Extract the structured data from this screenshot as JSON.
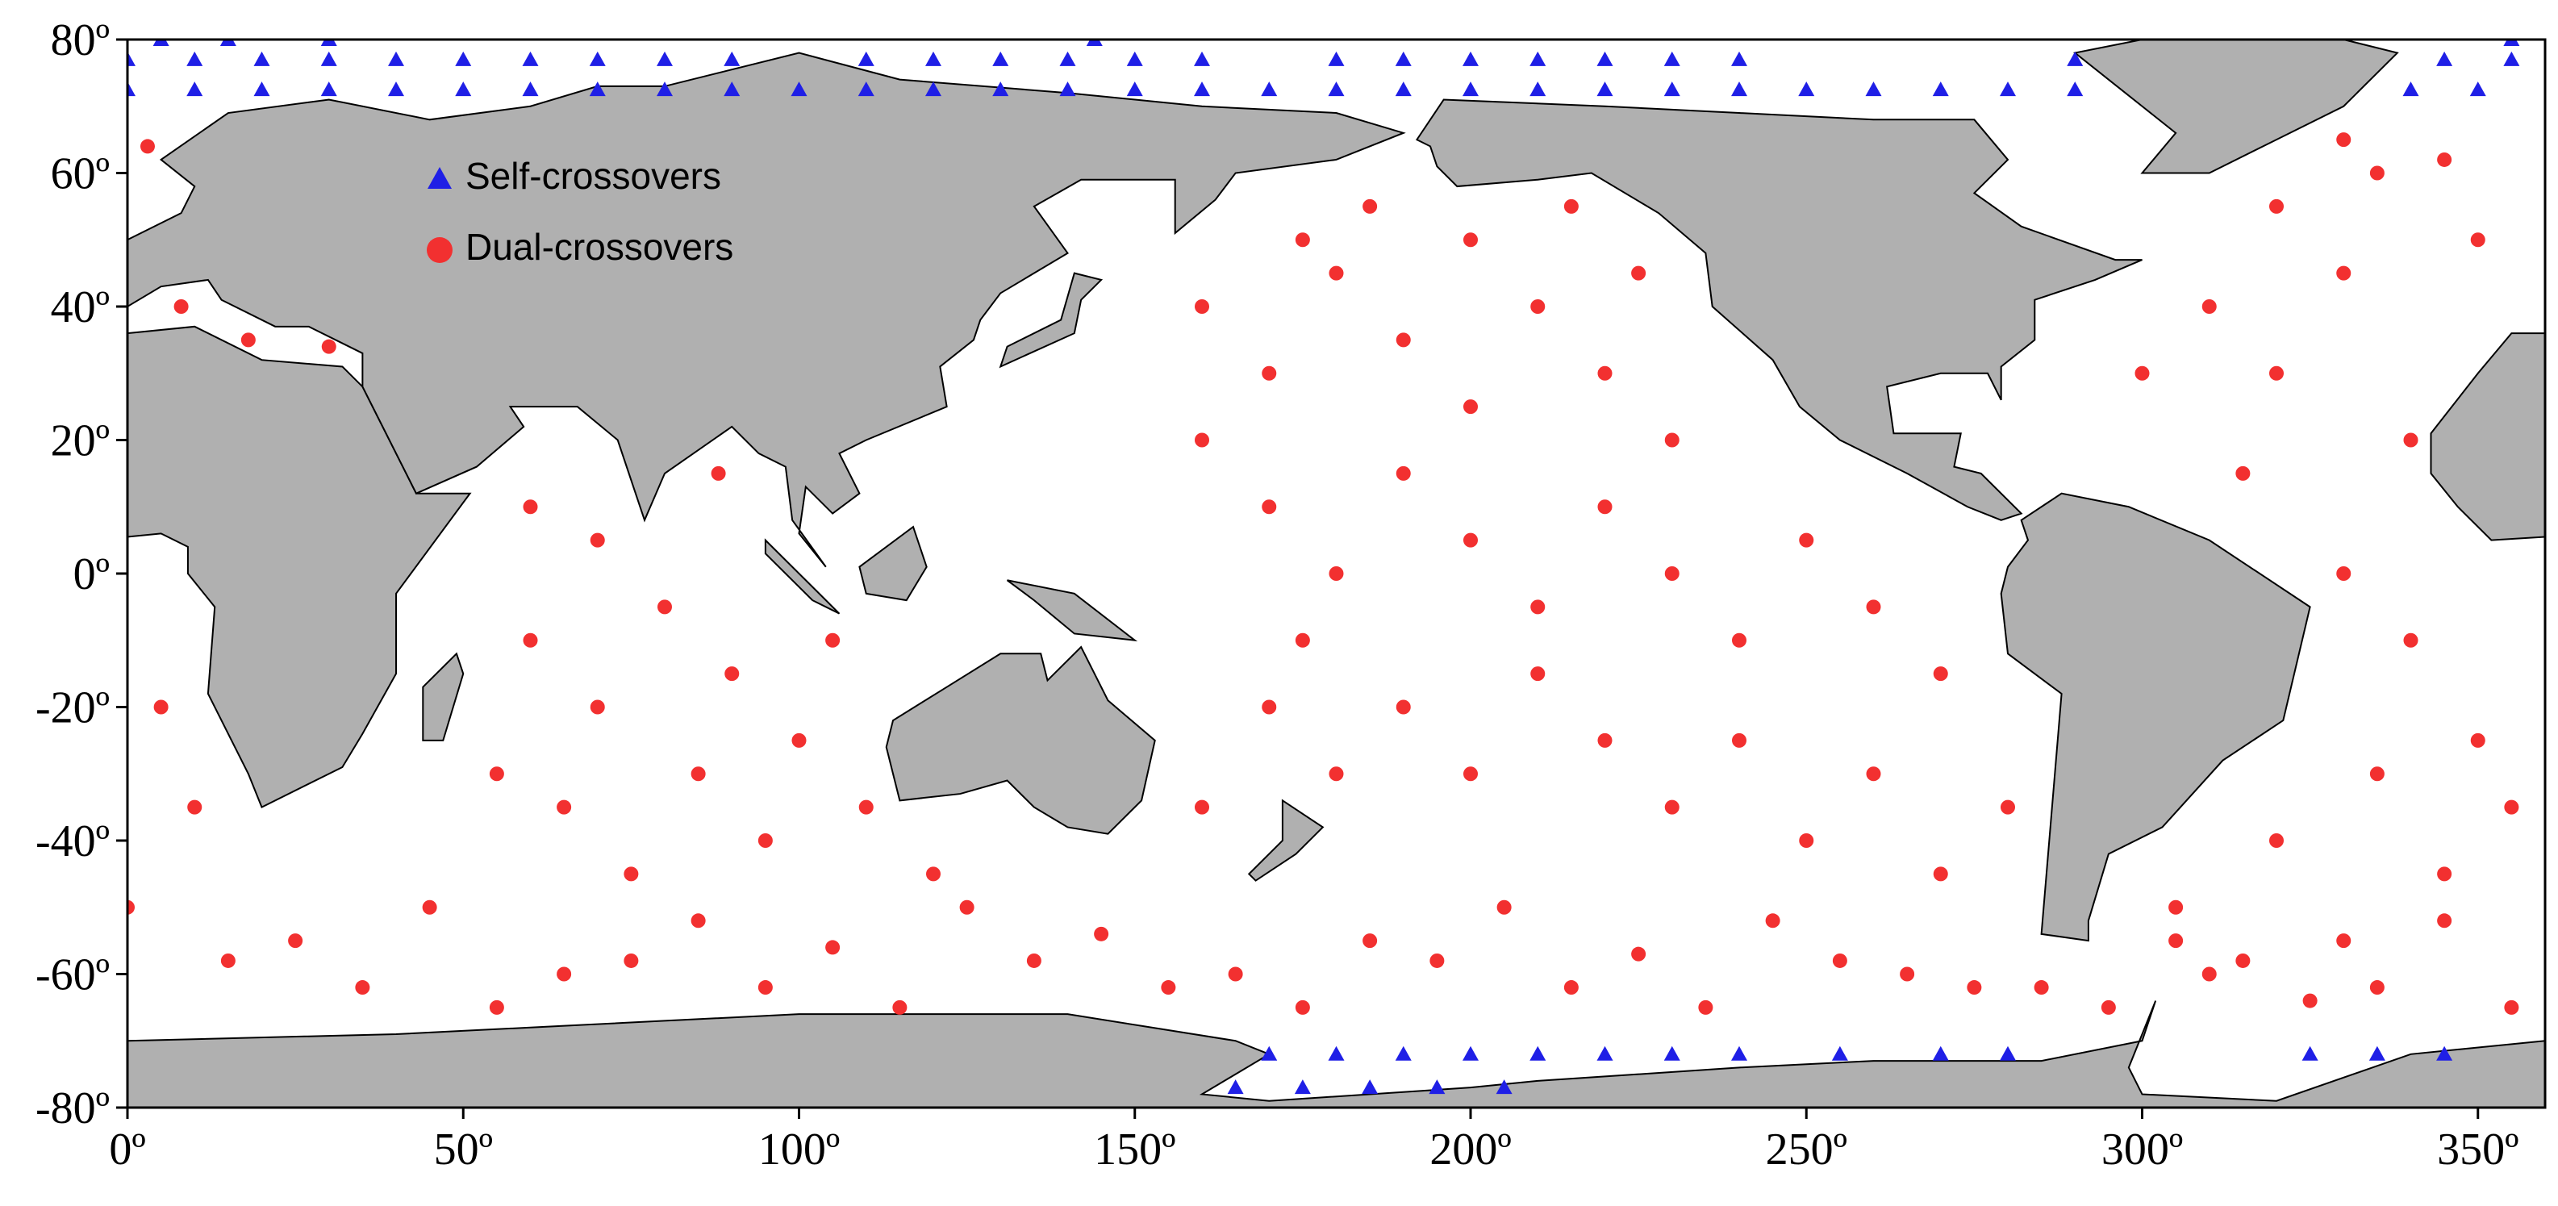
{
  "chart_data": {
    "type": "scatter",
    "xlim": [
      0,
      360
    ],
    "ylim": [
      -80,
      80
    ],
    "xticks": [
      {
        "value": 0,
        "label": "0º"
      },
      {
        "value": 50,
        "label": "50º"
      },
      {
        "value": 100,
        "label": "100º"
      },
      {
        "value": 150,
        "label": "150º"
      },
      {
        "value": 200,
        "label": "200º"
      },
      {
        "value": 250,
        "label": "250º"
      },
      {
        "value": 300,
        "label": "300º"
      },
      {
        "value": 350,
        "label": "350º"
      }
    ],
    "yticks": [
      {
        "value": -80,
        "label": "-80º"
      },
      {
        "value": -60,
        "label": "-60º"
      },
      {
        "value": -40,
        "label": "-40º"
      },
      {
        "value": -20,
        "label": "-20º"
      },
      {
        "value": 0,
        "label": "0º"
      },
      {
        "value": 20,
        "label": "20º"
      },
      {
        "value": 40,
        "label": "40º"
      },
      {
        "value": 60,
        "label": "60º"
      },
      {
        "value": 80,
        "label": "80º"
      }
    ],
    "legend": "upper left",
    "series": [
      {
        "name": "Self-crossovers",
        "color": "#1f1fe6",
        "marker": "triangle",
        "x": [
          0,
          10,
          20,
          30,
          40,
          50,
          60,
          70,
          80,
          90,
          100,
          110,
          120,
          130,
          140,
          150,
          160,
          170,
          180,
          190,
          200,
          210,
          220,
          230,
          240,
          250,
          260,
          270,
          280,
          290,
          340,
          350,
          0,
          10,
          20,
          30,
          40,
          50,
          60,
          70,
          80,
          90,
          110,
          120,
          130,
          140,
          150,
          160,
          180,
          190,
          200,
          210,
          220,
          230,
          240,
          290,
          345,
          355,
          5,
          15,
          30,
          144,
          355,
          170,
          180,
          190,
          200,
          210,
          220,
          230,
          240,
          255,
          270,
          280,
          325,
          335,
          345,
          165,
          175,
          185,
          195,
          205
        ],
        "y": [
          72.5,
          72.5,
          72.5,
          72.5,
          72.5,
          72.5,
          72.5,
          72.5,
          72.5,
          72.5,
          72.5,
          72.5,
          72.5,
          72.5,
          72.5,
          72.5,
          72.5,
          72.5,
          72.5,
          72.5,
          72.5,
          72.5,
          72.5,
          72.5,
          72.5,
          72.5,
          72.5,
          72.5,
          72.5,
          72.5,
          72.5,
          72.5,
          77,
          77,
          77,
          77,
          77,
          77,
          77,
          77,
          77,
          77,
          77,
          77,
          77,
          77,
          77,
          77,
          77,
          77,
          77,
          77,
          77,
          77,
          77,
          77,
          77,
          77,
          80,
          80,
          80,
          80,
          80,
          -72,
          -72,
          -72,
          -72,
          -72,
          -72,
          -72,
          -72,
          -72,
          -72,
          -72,
          -72,
          -72,
          -72,
          -77,
          -77,
          -77,
          -77,
          -77
        ]
      },
      {
        "name": "Dual-crossovers",
        "color": "#f23030",
        "marker": "circle",
        "x": [
          160,
          170,
          180,
          190,
          200,
          210,
          220,
          230,
          185,
          175,
          200,
          215,
          225,
          160,
          170,
          180,
          190,
          200,
          210,
          220,
          230,
          240,
          250,
          260,
          270,
          190,
          200,
          210,
          220,
          230,
          240,
          250,
          260,
          270,
          280,
          180,
          170,
          160,
          310,
          320,
          330,
          340,
          350,
          335,
          345,
          320,
          300,
          315,
          330,
          340,
          350,
          335,
          320,
          345,
          355,
          305,
          5,
          10,
          0,
          310,
          330,
          60,
          70,
          80,
          90,
          100,
          65,
          75,
          85,
          95,
          110,
          55,
          60,
          88,
          70,
          105,
          120,
          15,
          35,
          55,
          75,
          95,
          115,
          135,
          155,
          175,
          195,
          215,
          235,
          255,
          275,
          295,
          315,
          335,
          355,
          25,
          45,
          65,
          85,
          105,
          125,
          145,
          165,
          185,
          205,
          225,
          245,
          265,
          285,
          305,
          325,
          345,
          18,
          30,
          3,
          8,
          330,
          175
        ],
        "y": [
          40,
          30,
          45,
          35,
          25,
          40,
          30,
          20,
          55,
          50,
          50,
          55,
          45,
          20,
          10,
          0,
          15,
          5,
          -5,
          10,
          0,
          -10,
          5,
          -5,
          -15,
          -20,
          -30,
          -15,
          -25,
          -35,
          -25,
          -40,
          -30,
          -45,
          -35,
          -30,
          -20,
          -35,
          40,
          30,
          45,
          20,
          50,
          60,
          62,
          55,
          30,
          15,
          0,
          -10,
          -25,
          -30,
          -40,
          -45,
          -35,
          -50,
          -20,
          -35,
          -50,
          -60,
          -55,
          -10,
          -20,
          -5,
          -15,
          -25,
          -35,
          -45,
          -30,
          -40,
          -35,
          -30,
          10,
          15,
          5,
          -10,
          -45,
          -58,
          -62,
          -65,
          -58,
          -62,
          -65,
          -58,
          -62,
          -65,
          -58,
          -62,
          -65,
          -58,
          -62,
          -65,
          -58,
          -62,
          -65,
          -55,
          -50,
          -60,
          -52,
          -56,
          -50,
          -54,
          -60,
          -55,
          -50,
          -57,
          -52,
          -60,
          -62,
          -55,
          -64,
          -52,
          35,
          34,
          64,
          40,
          65,
          -10
        ]
      }
    ]
  }
}
